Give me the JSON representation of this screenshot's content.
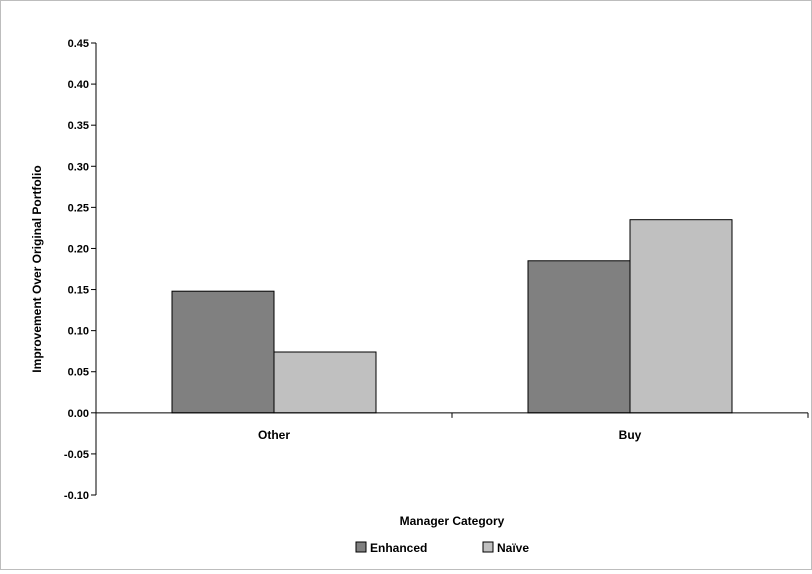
{
  "chart_data": {
    "type": "bar",
    "title": "",
    "xlabel": "Manager Category",
    "ylabel": "Improvement Over Original Portfolio",
    "categories": [
      "Other",
      "Buy"
    ],
    "series": [
      {
        "name": "Enhanced",
        "values": [
          0.148,
          0.185
        ],
        "color": "#808080"
      },
      {
        "name": "Naïve",
        "values": [
          0.074,
          0.235
        ],
        "color": "#c0c0c0"
      }
    ],
    "ylim": [
      -0.1,
      0.45
    ],
    "yticks": [
      "0.45",
      "0.40",
      "0.35",
      "0.30",
      "0.25",
      "0.20",
      "0.15",
      "0.10",
      "0.05",
      "0.00",
      "-0.05",
      "-0.10"
    ],
    "grid": false,
    "legend_position": "bottom-center"
  }
}
